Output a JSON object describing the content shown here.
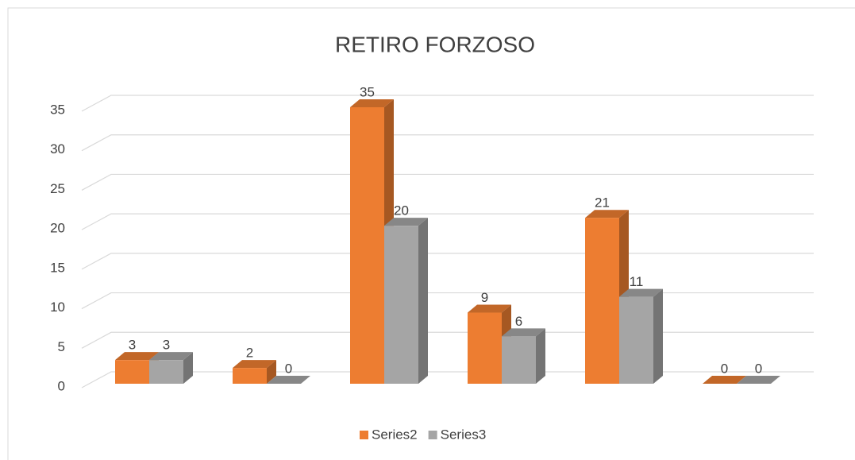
{
  "chart_data": {
    "type": "bar3d",
    "title": "RETIRO FORZOSO",
    "categories": [
      null,
      null,
      null,
      null,
      null,
      null
    ],
    "series": [
      {
        "name": "Series2",
        "color": "#ed7d31",
        "values": [
          3,
          2,
          35,
          9,
          21,
          0
        ]
      },
      {
        "name": "Series3",
        "color": "#a5a5a5",
        "values": [
          3,
          0,
          20,
          6,
          11,
          0
        ]
      }
    ],
    "ylim": [
      0,
      35
    ],
    "yticks": [
      0,
      5,
      10,
      15,
      20,
      25,
      30,
      35
    ],
    "grid": true,
    "legend": "bottom"
  }
}
